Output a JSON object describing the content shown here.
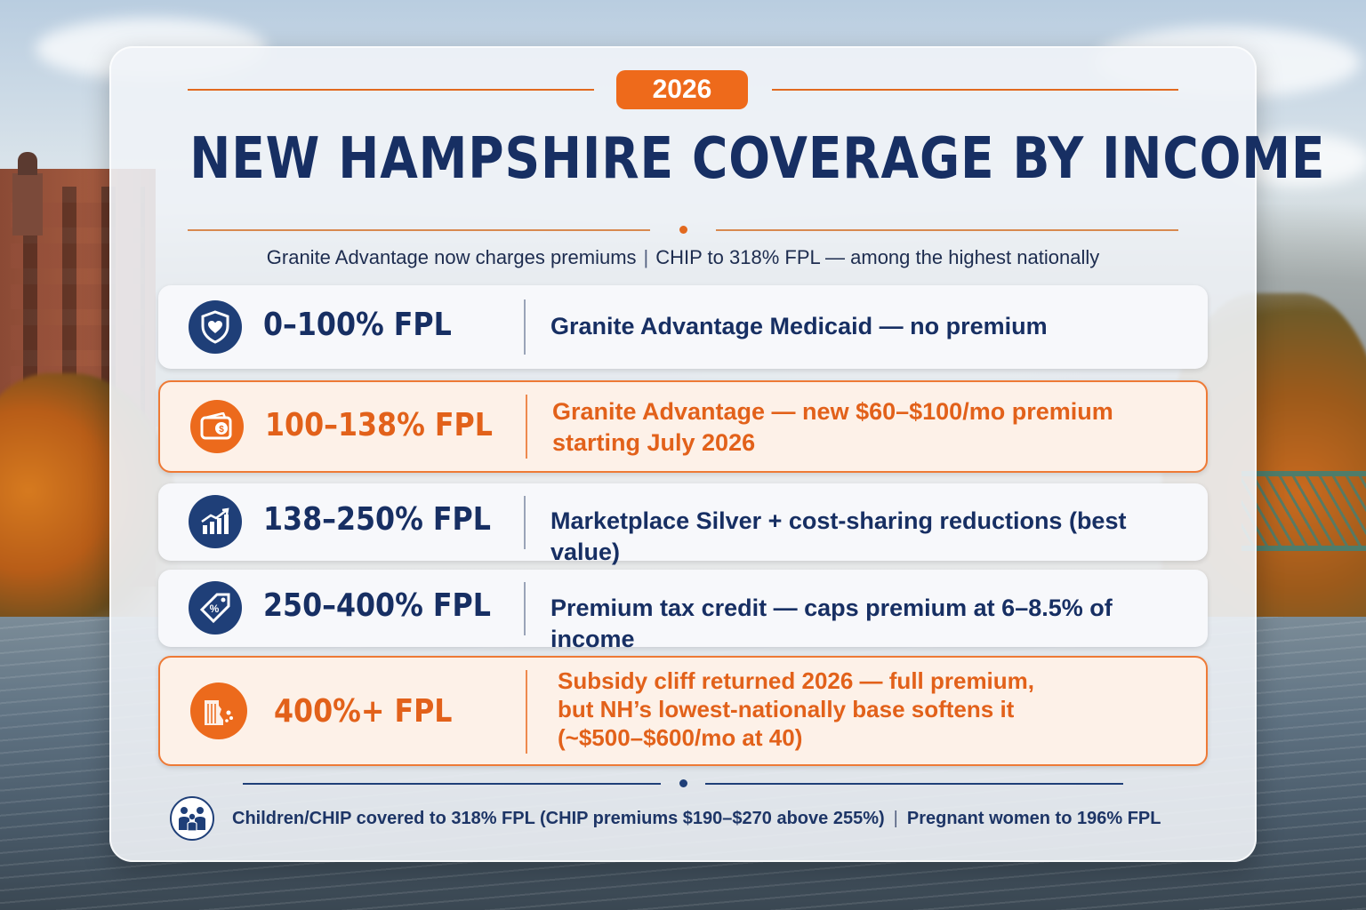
{
  "header": {
    "year": "2026",
    "title": "NEW HAMPSHIRE COVERAGE BY INCOME",
    "subtitle_left": "Granite Advantage now charges premiums",
    "subtitle_sep": "|",
    "subtitle_right": "CHIP to 318% FPL — among the highest nationally"
  },
  "rows": [
    {
      "range": "0–100% FPL",
      "icon": "shield-heart-icon",
      "lines": [
        "Granite Advantage Medicaid — no premium"
      ]
    },
    {
      "range": "100–138% FPL",
      "icon": "wallet-icon",
      "lines": [
        "Granite Advantage — new $60–$100/mo premium",
        "starting July 2026"
      ]
    },
    {
      "range": "138–250% FPL",
      "icon": "growth-chart-icon",
      "lines": [
        "Marketplace Silver + cost-sharing reductions (best value)"
      ]
    },
    {
      "range": "250–400% FPL",
      "icon": "discount-tag-icon",
      "lines": [
        "Premium tax credit — caps premium at 6–8.5% of income"
      ]
    },
    {
      "range": "400%+ FPL",
      "icon": "cliff-icon",
      "lines": [
        "Subsidy cliff returned 2026 — full premium,",
        "but NH’s lowest-nationally base softens it",
        "(~$500–$600/mo at 40)"
      ]
    }
  ],
  "footer": {
    "icon": "family-icon",
    "left": "Children/CHIP covered to 318% FPL (CHIP premiums $190–$270 above 255%)",
    "sep": "|",
    "right": "Pregnant women to 196% FPL"
  },
  "colors": {
    "navy": "#172f63",
    "orange": "#ee6a1b",
    "alert_bg": "#fdf1e8"
  }
}
